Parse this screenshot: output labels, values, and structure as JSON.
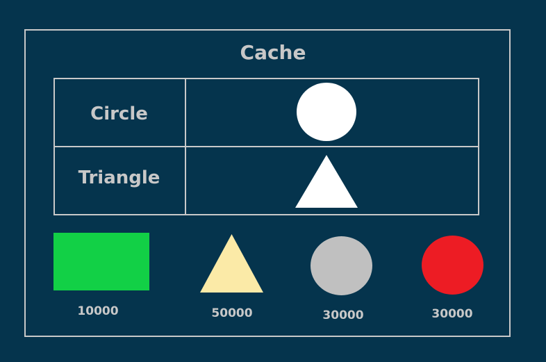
{
  "cache": {
    "title": "Cache",
    "rows": [
      {
        "label": "Circle",
        "shape": "circle",
        "color": "#ffffff"
      },
      {
        "label": "Triangle",
        "shape": "triangle",
        "color": "#ffffff"
      }
    ]
  },
  "items": [
    {
      "shape": "rectangle",
      "color": "#12d046",
      "value": "10000"
    },
    {
      "shape": "triangle",
      "color": "#fbeaa7",
      "value": "50000"
    },
    {
      "shape": "circle",
      "color": "#c0c0c0",
      "value": "30000"
    },
    {
      "shape": "circle",
      "color": "#ed1c24",
      "value": "30000"
    }
  ],
  "colors": {
    "background": "#05344d",
    "border": "#c9c9c9",
    "text": "#c8c8c8"
  }
}
